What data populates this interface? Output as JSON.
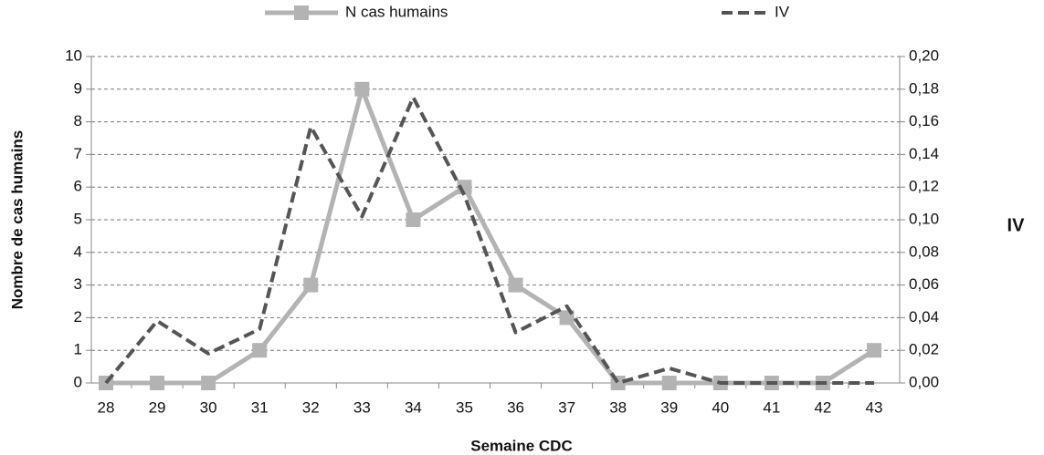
{
  "chart_data": {
    "type": "line",
    "x_label": "Semaine CDC",
    "y_label": "Nombre de cas humains",
    "y2_label": "IV",
    "categories": [
      "28",
      "29",
      "30",
      "31",
      "32",
      "33",
      "34",
      "35",
      "36",
      "37",
      "38",
      "39",
      "40",
      "41",
      "42",
      "43"
    ],
    "series": [
      {
        "name": "N cas humains",
        "color": "#b3b3b3",
        "style": "solid",
        "marker": "square",
        "values": [
          0,
          0,
          0,
          1,
          3,
          9,
          5,
          6,
          3,
          2,
          0,
          0,
          0,
          0,
          0,
          1
        ]
      },
      {
        "name": "IV",
        "color": "#555555",
        "style": "dashed",
        "axis": "y2",
        "values": [
          0,
          0.038,
          0.018,
          0.033,
          0.157,
          0.102,
          0.175,
          0.115,
          0.031,
          0.047,
          0,
          0.009,
          0,
          0,
          0,
          0
        ]
      }
    ],
    "ylim": [
      0,
      10
    ],
    "yticks": [
      0,
      1,
      2,
      3,
      4,
      5,
      6,
      7,
      8,
      9,
      10
    ],
    "y2lim": [
      0,
      0.2
    ],
    "y2ticks": [
      {
        "value": 0,
        "label": "0,00"
      },
      {
        "value": 0.02,
        "label": "0,02"
      },
      {
        "value": 0.04,
        "label": "0,04"
      },
      {
        "value": 0.06,
        "label": "0,06"
      },
      {
        "value": 0.08,
        "label": "0,08"
      },
      {
        "value": 0.1,
        "label": "0,10"
      },
      {
        "value": 0.12,
        "label": "0,12"
      },
      {
        "value": 0.14,
        "label": "0,14"
      },
      {
        "value": 0.16,
        "label": "0,16"
      },
      {
        "value": 0.18,
        "label": "0,18"
      },
      {
        "value": 0.2,
        "label": "0,20"
      }
    ],
    "grid": true,
    "legend": "top"
  }
}
